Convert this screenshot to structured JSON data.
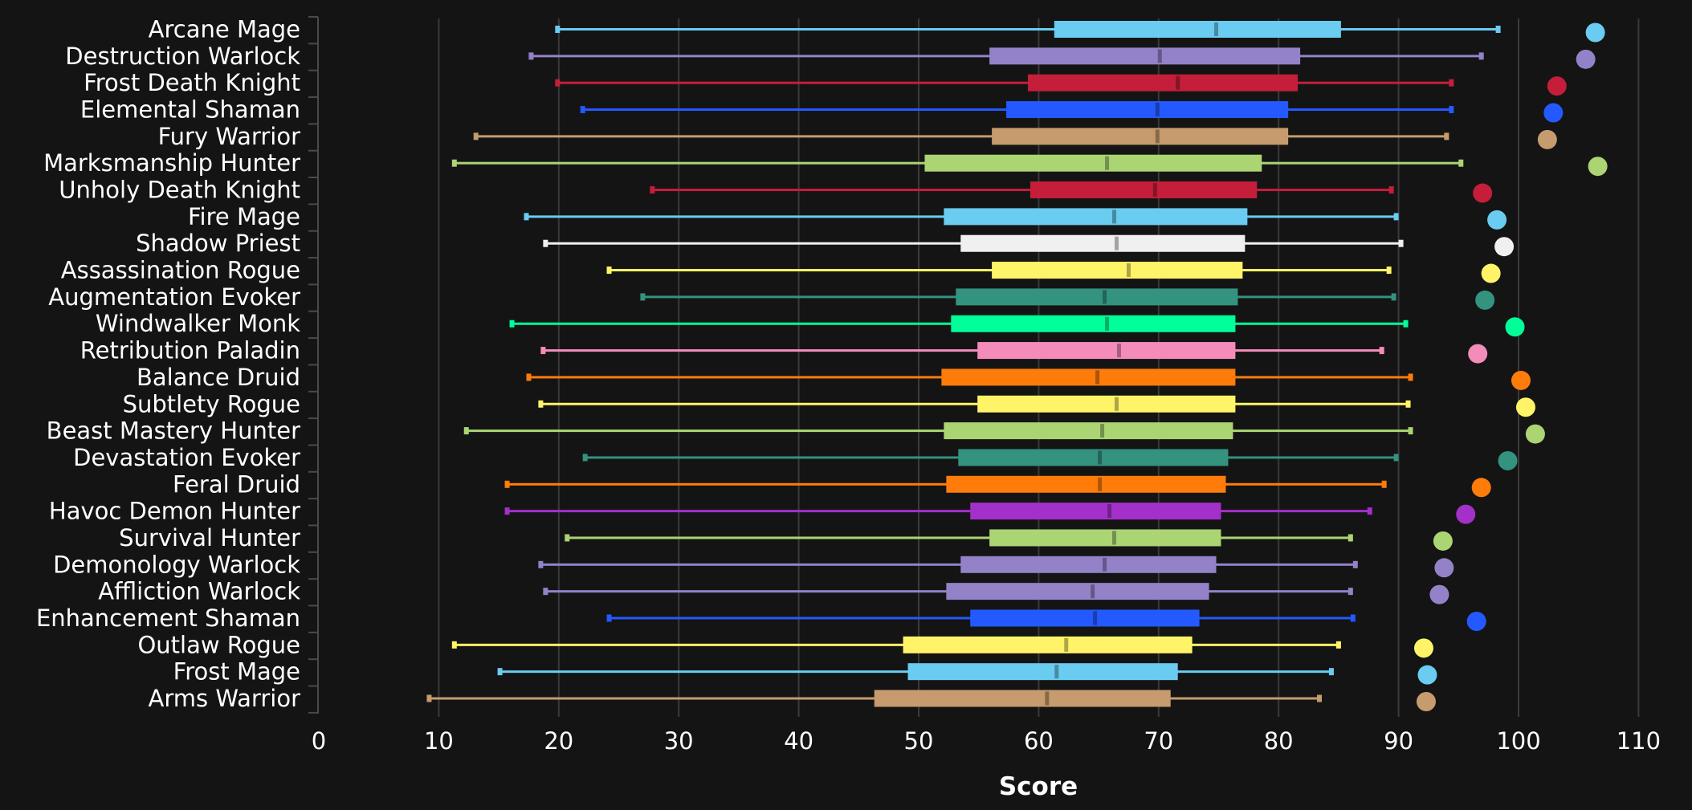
{
  "chart_data": {
    "type": "boxplot",
    "title": "",
    "xlabel": "Score",
    "ylabel": "",
    "xlim": [
      0,
      110
    ],
    "xticks": [
      0,
      10,
      20,
      30,
      40,
      50,
      60,
      70,
      80,
      90,
      100,
      110
    ],
    "grid": true,
    "legend": "none",
    "series": [
      {
        "name": "Arcane Mage",
        "color": "#69CCF0",
        "min": 19.9,
        "q1": 61.3,
        "median": 74.8,
        "q3": 85.2,
        "max": 98.3,
        "max_score": 106.4
      },
      {
        "name": "Destruction Warlock",
        "color": "#9482C9",
        "min": 17.7,
        "q1": 55.9,
        "median": 70.1,
        "q3": 81.8,
        "max": 96.9,
        "max_score": 105.6
      },
      {
        "name": "Frost Death Knight",
        "color": "#C41E3A",
        "min": 19.9,
        "q1": 59.1,
        "median": 71.6,
        "q3": 81.6,
        "max": 94.4,
        "max_score": 103.2
      },
      {
        "name": "Elemental Shaman",
        "color": "#2459FF",
        "min": 22.0,
        "q1": 57.3,
        "median": 69.9,
        "q3": 80.8,
        "max": 94.4,
        "max_score": 102.9
      },
      {
        "name": "Fury Warrior",
        "color": "#C69B6D",
        "min": 13.1,
        "q1": 56.1,
        "median": 69.9,
        "q3": 80.8,
        "max": 94.0,
        "max_score": 102.4
      },
      {
        "name": "Marksmanship Hunter",
        "color": "#ABD473",
        "min": 11.3,
        "q1": 50.5,
        "median": 65.7,
        "q3": 78.6,
        "max": 95.2,
        "max_score": 106.6
      },
      {
        "name": "Unholy Death Knight",
        "color": "#C41E3A",
        "min": 27.8,
        "q1": 59.3,
        "median": 69.7,
        "q3": 78.2,
        "max": 89.4,
        "max_score": 97.0
      },
      {
        "name": "Fire Mage",
        "color": "#69CCF0",
        "min": 17.3,
        "q1": 52.1,
        "median": 66.3,
        "q3": 77.4,
        "max": 89.8,
        "max_score": 98.2
      },
      {
        "name": "Shadow Priest",
        "color": "#F0F0F0",
        "min": 18.9,
        "q1": 53.5,
        "median": 66.5,
        "q3": 77.2,
        "max": 90.2,
        "max_score": 98.8
      },
      {
        "name": "Assassination Rogue",
        "color": "#FFF468",
        "min": 24.2,
        "q1": 56.1,
        "median": 67.5,
        "q3": 77.0,
        "max": 89.2,
        "max_score": 97.7
      },
      {
        "name": "Augmentation Evoker",
        "color": "#33937F",
        "min": 27.0,
        "q1": 53.1,
        "median": 65.5,
        "q3": 76.6,
        "max": 89.6,
        "max_score": 97.2
      },
      {
        "name": "Windwalker Monk",
        "color": "#00FF98",
        "min": 16.1,
        "q1": 52.7,
        "median": 65.7,
        "q3": 76.4,
        "max": 90.6,
        "max_score": 99.7
      },
      {
        "name": "Retribution Paladin",
        "color": "#F48CBA",
        "min": 18.7,
        "q1": 54.9,
        "median": 66.7,
        "q3": 76.4,
        "max": 88.6,
        "max_score": 96.6
      },
      {
        "name": "Balance Druid",
        "color": "#FF7C0A",
        "min": 17.5,
        "q1": 51.9,
        "median": 64.9,
        "q3": 76.4,
        "max": 91.0,
        "max_score": 100.2
      },
      {
        "name": "Subtlety Rogue",
        "color": "#FFF468",
        "min": 18.5,
        "q1": 54.9,
        "median": 66.5,
        "q3": 76.4,
        "max": 90.8,
        "max_score": 100.6
      },
      {
        "name": "Beast Mastery Hunter",
        "color": "#ABD473",
        "min": 12.3,
        "q1": 52.1,
        "median": 65.3,
        "q3": 76.2,
        "max": 91.0,
        "max_score": 101.4
      },
      {
        "name": "Devastation Evoker",
        "color": "#33937F",
        "min": 22.2,
        "q1": 53.3,
        "median": 65.1,
        "q3": 75.8,
        "max": 89.8,
        "max_score": 99.1
      },
      {
        "name": "Feral Druid",
        "color": "#FF7C0A",
        "min": 15.7,
        "q1": 52.3,
        "median": 65.1,
        "q3": 75.6,
        "max": 88.8,
        "max_score": 96.9
      },
      {
        "name": "Havoc Demon Hunter",
        "color": "#A330C9",
        "min": 15.7,
        "q1": 54.3,
        "median": 65.9,
        "q3": 75.2,
        "max": 87.6,
        "max_score": 95.6
      },
      {
        "name": "Survival Hunter",
        "color": "#ABD473",
        "min": 20.7,
        "q1": 55.9,
        "median": 66.3,
        "q3": 75.2,
        "max": 86.0,
        "max_score": 93.7
      },
      {
        "name": "Demonology Warlock",
        "color": "#9482C9",
        "min": 18.5,
        "q1": 53.5,
        "median": 65.5,
        "q3": 74.8,
        "max": 86.4,
        "max_score": 93.8
      },
      {
        "name": "Affliction Warlock",
        "color": "#9482C9",
        "min": 18.9,
        "q1": 52.3,
        "median": 64.5,
        "q3": 74.2,
        "max": 86.0,
        "max_score": 93.4
      },
      {
        "name": "Enhancement Shaman",
        "color": "#2459FF",
        "min": 24.2,
        "q1": 54.3,
        "median": 64.7,
        "q3": 73.4,
        "max": 86.2,
        "max_score": 96.5
      },
      {
        "name": "Outlaw Rogue",
        "color": "#FFF468",
        "min": 11.3,
        "q1": 48.7,
        "median": 62.3,
        "q3": 72.8,
        "max": 85.0,
        "max_score": 92.1
      },
      {
        "name": "Frost Mage",
        "color": "#69CCF0",
        "min": 15.1,
        "q1": 49.1,
        "median": 61.5,
        "q3": 71.6,
        "max": 84.4,
        "max_score": 92.4
      },
      {
        "name": "Arms Warrior",
        "color": "#C69B6D",
        "min": 9.2,
        "q1": 46.3,
        "median": 60.7,
        "q3": 71.0,
        "max": 83.4,
        "max_score": 92.3
      }
    ]
  },
  "theme": {
    "background": "#141414",
    "grid_color": "#3a3a3a",
    "axis_color": "#4a4a4a",
    "text_color": "#ffffff"
  }
}
